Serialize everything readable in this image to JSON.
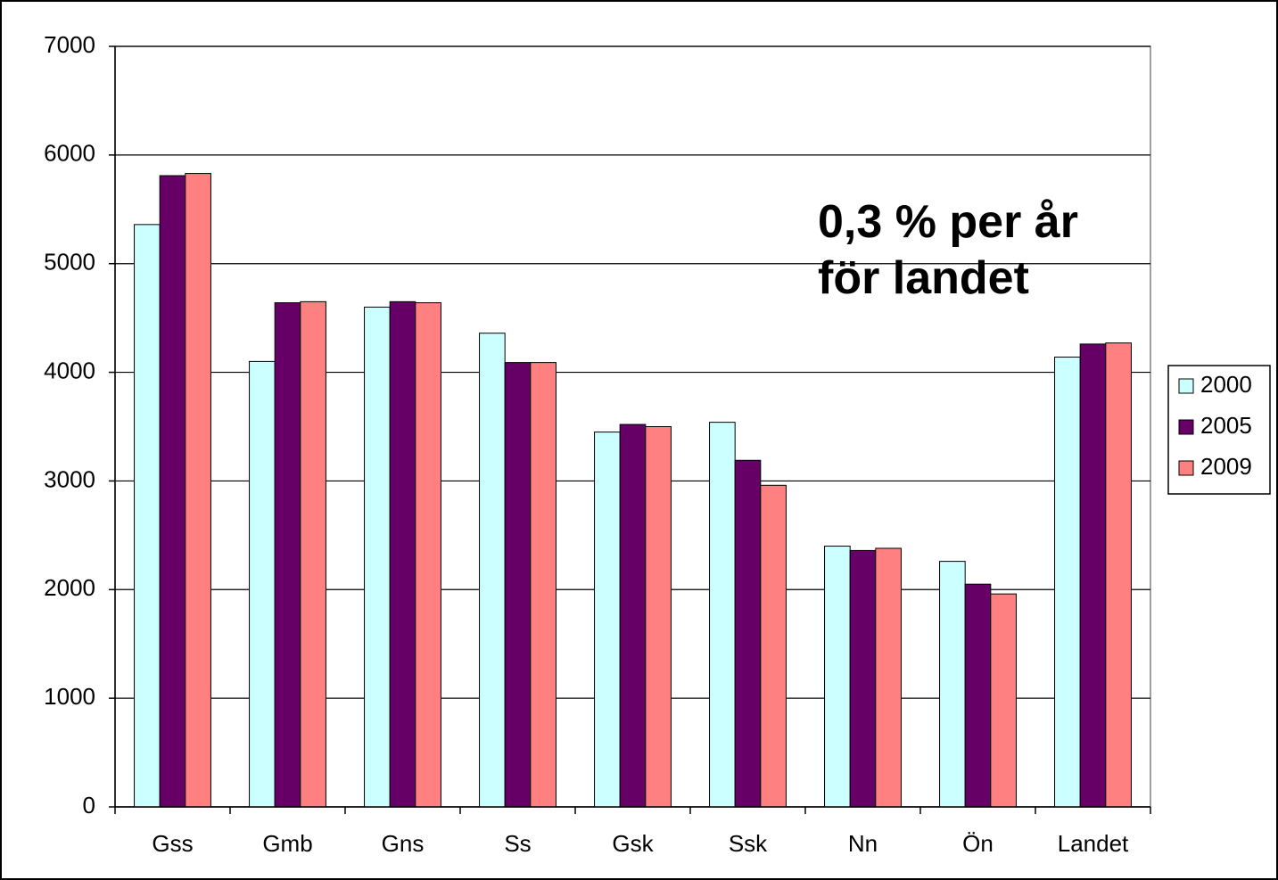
{
  "chart_data": {
    "type": "bar",
    "categories": [
      "Gss",
      "Gmb",
      "Gns",
      "Ss",
      "Gsk",
      "Ssk",
      "Nn",
      "Ön",
      "Landet"
    ],
    "series": [
      {
        "name": "2000",
        "color": "#ccffff",
        "values": [
          5360,
          4100,
          4600,
          4360,
          3450,
          3540,
          2400,
          2260,
          4140
        ]
      },
      {
        "name": "2005",
        "color": "#660066",
        "values": [
          5810,
          4640,
          4650,
          4090,
          3520,
          3190,
          2360,
          2050,
          4260
        ]
      },
      {
        "name": "2009",
        "color": "#ff8080",
        "values": [
          5830,
          4650,
          4640,
          4090,
          3500,
          2960,
          2380,
          1960,
          4270
        ]
      }
    ],
    "annotation": [
      "0,3 % per år",
      "för landet"
    ],
    "ylim": [
      0,
      7000
    ],
    "yticks": [
      0,
      1000,
      2000,
      3000,
      4000,
      5000,
      6000,
      7000
    ],
    "grid": true,
    "legend": "right"
  }
}
